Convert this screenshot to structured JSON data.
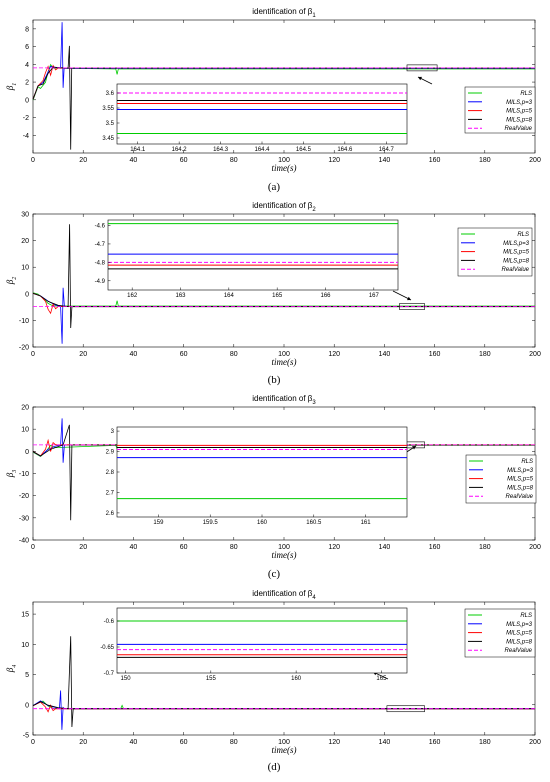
{
  "chart_data": [
    {
      "type": "line",
      "panel_label": "(a)",
      "title": "identification of β",
      "title_sub": "1",
      "xlabel": "time(s)",
      "ylabel": "β",
      "ylabel_sub": "1",
      "xlim": [
        0,
        200
      ],
      "ylim": [
        -6,
        9
      ],
      "xticks": [
        "0",
        "20",
        "40",
        "60",
        "80",
        "100",
        "120",
        "140",
        "160",
        "180",
        "200"
      ],
      "yticks": [
        "8",
        "6",
        "4",
        "2",
        "0",
        "-2",
        "-4"
      ],
      "legend_position": "right",
      "series": [
        {
          "name": "RLS",
          "color": "#00cc00",
          "dash": "",
          "steady": 3.47
        },
        {
          "name": "MILS,p=3",
          "color": "#0000ff",
          "dash": "",
          "steady": 3.55
        },
        {
          "name": "MILS,p=5",
          "color": "#ff0000",
          "dash": "",
          "steady": 3.57
        },
        {
          "name": "MILS,p=8",
          "color": "#000000",
          "dash": "",
          "steady": 3.58
        },
        {
          "name": "RealValue",
          "color": "#ff00ff",
          "dash": "4,2",
          "steady": 3.6
        }
      ],
      "inset": {
        "xlim": [
          164.05,
          164.75
        ],
        "ylim": [
          3.43,
          3.63
        ],
        "xticks": [
          "164.1",
          "164.2",
          "164.3",
          "164.4",
          "164.5",
          "164.6",
          "164.7"
        ],
        "yticks": [
          "3.6",
          "3.55",
          "3.5",
          "3.45"
        ],
        "values": [
          3.465,
          3.545,
          3.565,
          3.575,
          3.6
        ]
      }
    },
    {
      "type": "line",
      "panel_label": "(b)",
      "title": "identification of β",
      "title_sub": "2",
      "xlabel": "time(s)",
      "ylabel": "β",
      "ylabel_sub": "2",
      "xlim": [
        0,
        200
      ],
      "ylim": [
        -20,
        30
      ],
      "xticks": [
        "0",
        "20",
        "40",
        "60",
        "80",
        "100",
        "120",
        "140",
        "160",
        "180",
        "200"
      ],
      "yticks": [
        "30",
        "20",
        "10",
        "0",
        "-10",
        "-20"
      ],
      "legend_position": "top-right",
      "series": [
        {
          "name": "RLS",
          "color": "#00cc00",
          "dash": "",
          "steady": -4.6
        },
        {
          "name": "MILS,p=3",
          "color": "#0000ff",
          "dash": "",
          "steady": -4.76
        },
        {
          "name": "MILS,p=5",
          "color": "#ff0000",
          "dash": "",
          "steady": -4.82
        },
        {
          "name": "MILS,p=8",
          "color": "#000000",
          "dash": "",
          "steady": -4.84
        },
        {
          "name": "RealValue",
          "color": "#ff00ff",
          "dash": "4,2",
          "steady": -4.8
        }
      ],
      "inset": {
        "xlim": [
          161.5,
          167.5
        ],
        "ylim": [
          -4.95,
          -4.57
        ],
        "xticks": [
          "162",
          "163",
          "164",
          "165",
          "166",
          "167"
        ],
        "yticks": [
          "-4.6",
          "-4.7",
          "-4.8",
          "-4.9"
        ],
        "values": [
          -4.59,
          -4.755,
          -4.815,
          -4.835,
          -4.8
        ]
      }
    },
    {
      "type": "line",
      "panel_label": "(c)",
      "title": "identification of β",
      "title_sub": "3",
      "xlabel": "time(s)",
      "ylabel": "β",
      "ylabel_sub": "3",
      "xlim": [
        0,
        200
      ],
      "ylim": [
        -40,
        20
      ],
      "xticks": [
        "0",
        "20",
        "40",
        "60",
        "80",
        "100",
        "120",
        "140",
        "160",
        "180",
        "200"
      ],
      "yticks": [
        "20",
        "10",
        "0",
        "-10",
        "-20",
        "-30",
        "-40"
      ],
      "legend_position": "right",
      "series": [
        {
          "name": "RLS",
          "color": "#00cc00",
          "dash": "",
          "steady": 2.67
        },
        {
          "name": "MILS,p=3",
          "color": "#0000ff",
          "dash": "",
          "steady": 2.87
        },
        {
          "name": "MILS,p=5",
          "color": "#ff0000",
          "dash": "",
          "steady": 2.93
        },
        {
          "name": "MILS,p=8",
          "color": "#000000",
          "dash": "",
          "steady": 2.92
        },
        {
          "name": "RealValue",
          "color": "#ff00ff",
          "dash": "4,2",
          "steady": 2.91
        }
      ],
      "inset": {
        "xlim": [
          158.6,
          161.4
        ],
        "ylim": [
          2.58,
          3.02
        ],
        "xticks": [
          "159",
          "159.5",
          "160",
          "160.5",
          "161"
        ],
        "yticks": [
          "3",
          "2.9",
          "2.8",
          "2.7",
          "2.6"
        ],
        "values": [
          2.67,
          2.87,
          2.93,
          2.92,
          2.91
        ]
      }
    },
    {
      "type": "line",
      "panel_label": "(d)",
      "title": "identification of β",
      "title_sub": "4",
      "xlabel": "time(s)",
      "ylabel": "β",
      "ylabel_sub": "4",
      "xlim": [
        0,
        200
      ],
      "ylim": [
        -5,
        17
      ],
      "xticks": [
        "0",
        "20",
        "40",
        "60",
        "80",
        "100",
        "120",
        "140",
        "160",
        "180",
        "200"
      ],
      "yticks": [
        "15",
        "10",
        "5",
        "0",
        "-5"
      ],
      "legend_position": "top-right",
      "series": [
        {
          "name": "RLS",
          "color": "#00cc00",
          "dash": "",
          "steady": -0.6
        },
        {
          "name": "MILS,p=3",
          "color": "#0000ff",
          "dash": "",
          "steady": -0.645
        },
        {
          "name": "MILS,p=5",
          "color": "#ff0000",
          "dash": "",
          "steady": -0.665
        },
        {
          "name": "MILS,p=8",
          "color": "#000000",
          "dash": "",
          "steady": -0.67
        },
        {
          "name": "RealValue",
          "color": "#ff00ff",
          "dash": "4,2",
          "steady": -0.655
        }
      ],
      "inset": {
        "xlim": [
          149.5,
          166.5
        ],
        "ylim": [
          -0.7,
          -0.575
        ],
        "xticks": [
          "150",
          "155",
          "160",
          "165"
        ],
        "yticks": [
          "-0.6",
          "-0.65",
          "-0.7"
        ],
        "values": [
          -0.6,
          -0.645,
          -0.665,
          -0.67,
          -0.655
        ]
      }
    }
  ]
}
